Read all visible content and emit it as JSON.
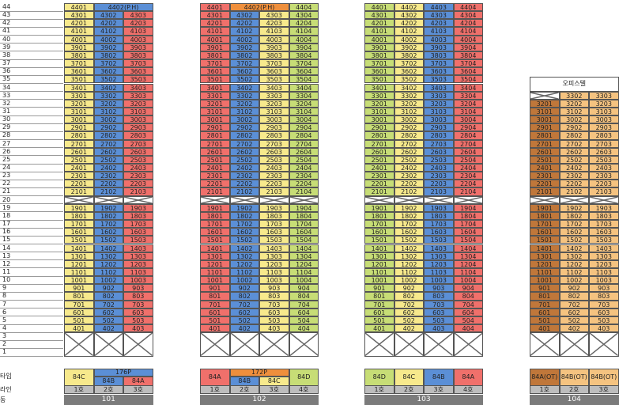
{
  "row_labels": {
    "type": "타입",
    "line": "라인",
    "building": "동"
  },
  "colors": {
    "yellow": "#f7e98c",
    "blue": "#5b8fd6",
    "red": "#f0706b",
    "green": "#c7dd76",
    "orange": "#ef8f3c",
    "brown": "#c0773a",
    "lightorange": "#f5c380",
    "white": "#ffffff",
    "gray": "#bdbdbd",
    "darkgray": "#7b7b7b"
  },
  "buildings": [
    {
      "name": "101",
      "lines": [
        "1호",
        "2호",
        "3호"
      ],
      "line_colors": [
        "yellow",
        "blue",
        "red"
      ],
      "top_floor_merged": {
        "cols": [
          1,
          2
        ],
        "label": "4402(P.H)",
        "color": "blue"
      },
      "types": [
        {
          "label": "84C",
          "color": "yellow",
          "span": [
            0,
            0
          ],
          "row": "full"
        },
        {
          "label": "176P",
          "color": "blue",
          "span": [
            1,
            2
          ],
          "row": "top"
        },
        {
          "label": "84B",
          "color": "blue",
          "span": [
            1,
            1
          ],
          "row": "bottom"
        },
        {
          "label": "84A",
          "color": "red",
          "span": [
            2,
            2
          ],
          "row": "bottom"
        }
      ]
    },
    {
      "name": "102",
      "lines": [
        "1호",
        "2호",
        "3호",
        "4호"
      ],
      "line_colors": [
        "red",
        "blue",
        "yellow",
        "green"
      ],
      "top_floor_merged": {
        "cols": [
          1,
          2
        ],
        "label": "4402(P.H)",
        "color": "orange"
      },
      "types": [
        {
          "label": "84A",
          "color": "red",
          "span": [
            0,
            0
          ],
          "row": "full"
        },
        {
          "label": "172P",
          "color": "orange",
          "span": [
            1,
            2
          ],
          "row": "top"
        },
        {
          "label": "84B",
          "color": "blue",
          "span": [
            1,
            1
          ],
          "row": "bottom"
        },
        {
          "label": "84C",
          "color": "yellow",
          "span": [
            2,
            2
          ],
          "row": "bottom"
        },
        {
          "label": "84D",
          "color": "green",
          "span": [
            3,
            3
          ],
          "row": "full"
        }
      ]
    },
    {
      "name": "103",
      "lines": [
        "1호",
        "2호",
        "3호",
        "4호"
      ],
      "line_colors": [
        "green",
        "yellow",
        "blue",
        "red"
      ],
      "top_floor_merged": null,
      "types": [
        {
          "label": "84D",
          "color": "green",
          "span": [
            0,
            0
          ],
          "row": "full"
        },
        {
          "label": "84C",
          "color": "yellow",
          "span": [
            1,
            1
          ],
          "row": "full"
        },
        {
          "label": "84B",
          "color": "blue",
          "span": [
            2,
            2
          ],
          "row": "full"
        },
        {
          "label": "84A",
          "color": "red",
          "span": [
            3,
            3
          ],
          "row": "full"
        }
      ]
    },
    {
      "name": "104",
      "lines": [
        "1호",
        "2호",
        "3호"
      ],
      "line_colors": [
        "brown",
        "lightorange",
        "lightorange"
      ],
      "office_header": "오피스텔",
      "max_floor": 33,
      "top_floor_first_blank": true,
      "types": [
        {
          "label": "84A(OT)",
          "color": "brown",
          "span": [
            0,
            0
          ],
          "row": "full"
        },
        {
          "label": "84B(OT)",
          "color": "lightorange",
          "span": [
            1,
            1
          ],
          "row": "full"
        },
        {
          "label": "84B(OT)",
          "color": "lightorange",
          "span": [
            2,
            2
          ],
          "row": "full"
        }
      ]
    }
  ],
  "floors": {
    "max": 44,
    "min": 1,
    "blank_floors": [
      20,
      1,
      2,
      3
    ]
  }
}
